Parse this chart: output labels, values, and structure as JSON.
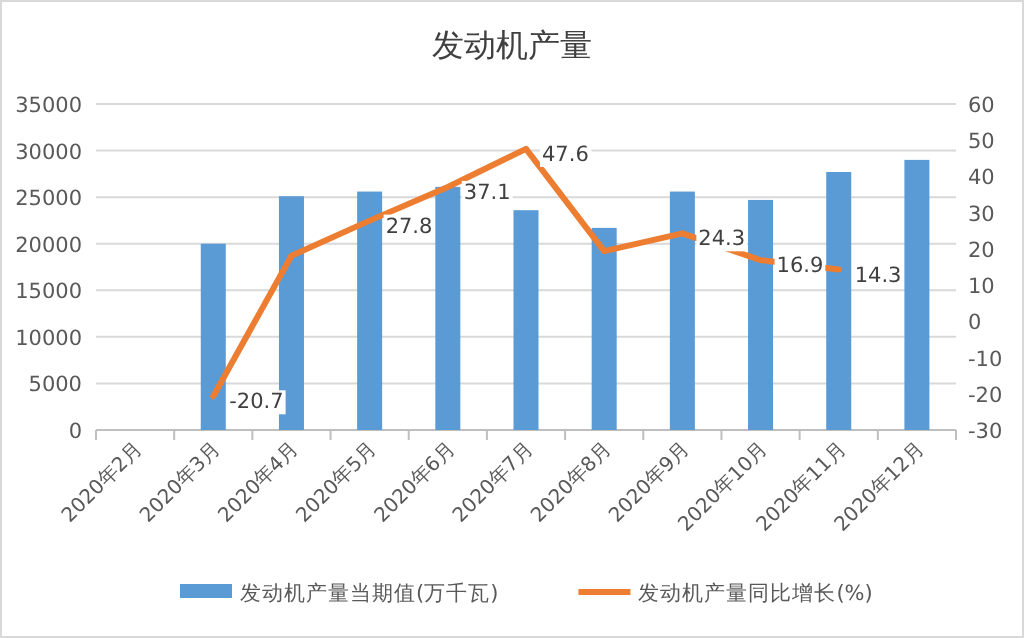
{
  "chart_data": {
    "type": "bar",
    "title": "发动机产量",
    "categories": [
      "2020年2月",
      "2020年3月",
      "2020年4月",
      "2020年5月",
      "2020年6月",
      "2020年7月",
      "2020年8月",
      "2020年9月",
      "2020年10月",
      "2020年11月",
      "2020年12月"
    ],
    "series": [
      {
        "name": "发动机产量当期值(万千瓦)",
        "color": "#5b9bd5",
        "values": [
          null,
          20000,
          25100,
          25600,
          26100,
          23600,
          21700,
          25600,
          24700,
          27700,
          29000
        ]
      },
      {
        "name": "发动机产量同比增长(%)",
        "type": "line",
        "axis": "y2",
        "color": "#ed7d31",
        "values": [
          null,
          -20.7,
          18.1,
          27.8,
          37.1,
          47.6,
          19.4,
          24.3,
          16.9,
          14.3,
          null
        ],
        "value_labels": [
          null,
          "-20.7",
          null,
          "27.8",
          "37.1",
          "47.6",
          null,
          "24.3",
          "16.9",
          "14.3",
          null
        ]
      }
    ],
    "ylim": [
      0,
      35000
    ],
    "yticks": [
      0,
      5000,
      10000,
      15000,
      20000,
      25000,
      30000,
      35000
    ],
    "y2lim": [
      -30,
      60
    ],
    "y2ticks": [
      -30,
      -20,
      -10,
      0,
      10,
      20,
      30,
      40,
      50,
      60
    ],
    "grid": "y",
    "legend": "bottom"
  }
}
